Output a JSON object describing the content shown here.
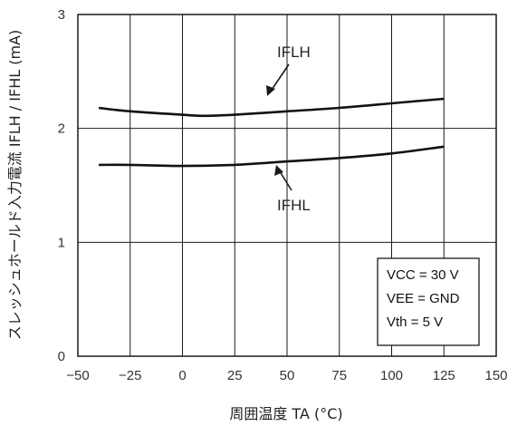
{
  "chart_data": {
    "type": "line",
    "xlabel": "周囲温度  TA (°C)",
    "ylabel": "スレッシュホールド入力電流  IFLH / IFHL (mA)",
    "xlim": [
      -50,
      150
    ],
    "ylim": [
      0,
      3
    ],
    "x_ticks": [
      "−50",
      "−25",
      "0",
      "25",
      "50",
      "75",
      "100",
      "125",
      "150"
    ],
    "y_ticks": [
      "0",
      "1",
      "2",
      "3"
    ],
    "grid": true,
    "series": [
      {
        "name": "IFLH",
        "x": [
          -40,
          -25,
          0,
          10,
          25,
          50,
          75,
          100,
          125
        ],
        "y": [
          2.18,
          2.15,
          2.12,
          2.11,
          2.12,
          2.15,
          2.18,
          2.22,
          2.26
        ]
      },
      {
        "name": "IFHL",
        "x": [
          -40,
          -25,
          0,
          25,
          50,
          75,
          100,
          125
        ],
        "y": [
          1.68,
          1.68,
          1.67,
          1.68,
          1.71,
          1.74,
          1.78,
          1.84
        ]
      }
    ],
    "annotations": [
      {
        "text": "IFLH",
        "points_to": "IFLH",
        "position": "above"
      },
      {
        "text": "IFHL",
        "points_to": "IFHL",
        "position": "below"
      }
    ],
    "conditions_box": {
      "position": "bottom-right",
      "lines": [
        "VCC = 30 V",
        "VEE = GND",
        "Vth = 5 V"
      ]
    }
  }
}
